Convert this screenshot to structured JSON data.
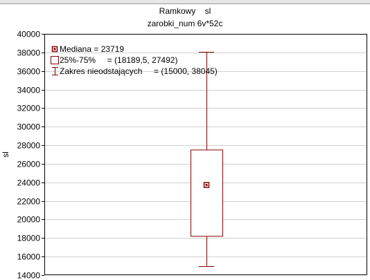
{
  "chart_data": {
    "type": "box",
    "title": "Ramkowy    sl",
    "subtitle": "zarobki_num 6v*52c",
    "ylabel": "sl",
    "xlabel": "",
    "ylim": [
      14000,
      40000
    ],
    "ytick_step": 2000,
    "grid": true,
    "legend_position": "top-left",
    "box": {
      "median": 23719,
      "q1": 18189.5,
      "q3": 27492,
      "min": 15000,
      "max": 38045
    },
    "legend": [
      {
        "marker": "median-square",
        "label": "Mediana = 23719"
      },
      {
        "marker": "box",
        "label": "25%-75%     = (18189,5, 27492)"
      },
      {
        "marker": "whisker",
        "label": "Zakres nieodstających     = (15000, 38045)"
      }
    ],
    "colors": {
      "box": "#800000",
      "grid": "#d0d0d0",
      "axis": "#000000"
    }
  }
}
